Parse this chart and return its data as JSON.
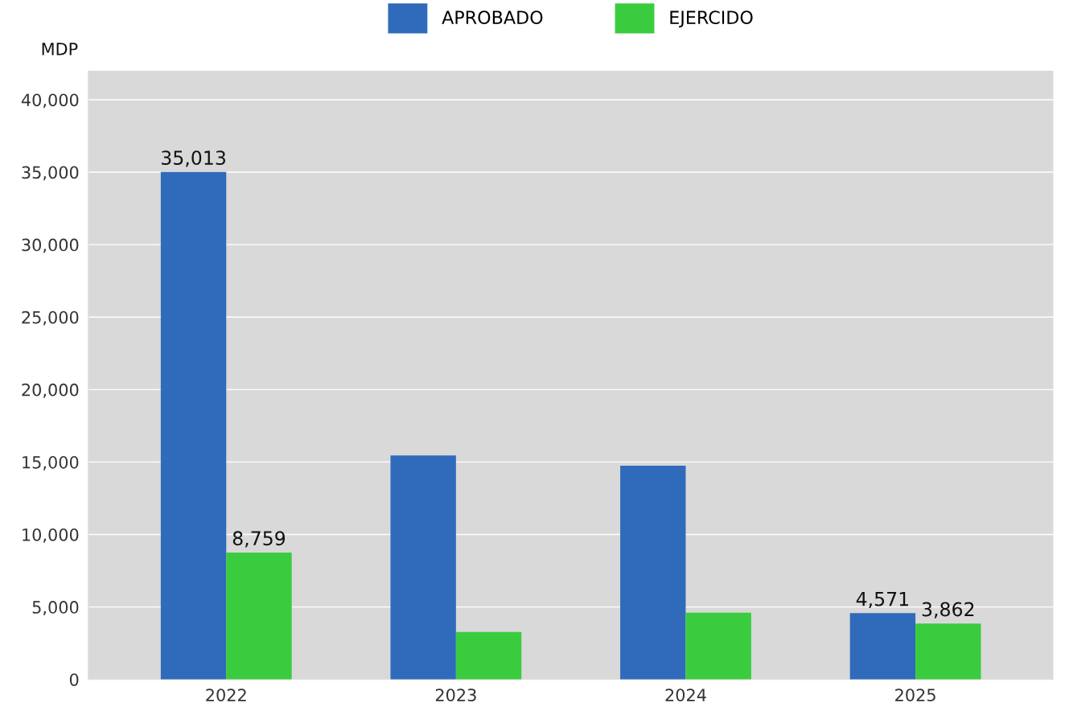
{
  "chart_data": {
    "type": "bar",
    "ylabel": "MDP",
    "categories": [
      "2022",
      "2023",
      "2024",
      "2025"
    ],
    "series": [
      {
        "name": "APROBADO",
        "color": "#306bbb",
        "values": [
          35013,
          15460,
          14740,
          4571
        ],
        "value_labels": [
          "35,013",
          null,
          null,
          "4,571"
        ]
      },
      {
        "name": "EJERCIDO",
        "color": "#3acc3e",
        "values": [
          8759,
          3270,
          4600,
          3862
        ],
        "value_labels": [
          "8,759",
          null,
          null,
          "3,862"
        ]
      }
    ],
    "ylim": [
      0,
      42000
    ],
    "yticks": [
      {
        "value": 0,
        "label": "0"
      },
      {
        "value": 5000,
        "label": "5,000"
      },
      {
        "value": 10000,
        "label": "10,000"
      },
      {
        "value": 15000,
        "label": "15,000"
      },
      {
        "value": 20000,
        "label": "20,000"
      },
      {
        "value": 25000,
        "label": "25,000"
      },
      {
        "value": 30000,
        "label": "30,000"
      },
      {
        "value": 35000,
        "label": "35,000"
      },
      {
        "value": 40000,
        "label": "40,000"
      }
    ],
    "grid": "y",
    "legend": "top"
  }
}
